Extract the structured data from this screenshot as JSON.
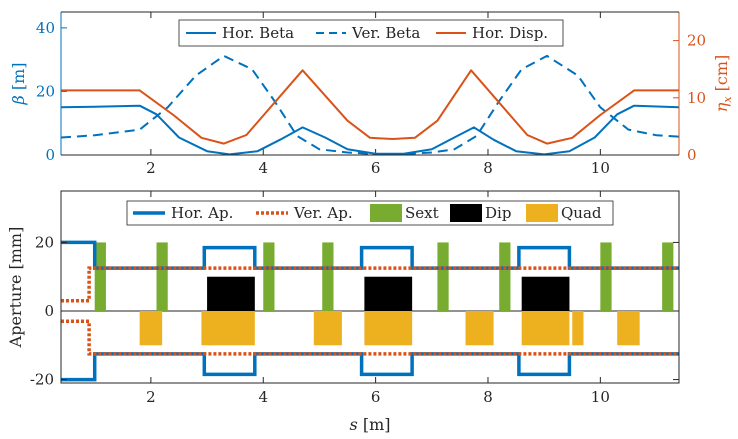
{
  "chart_data": [
    {
      "type": "line",
      "x_range": [
        0.4,
        11.4
      ],
      "x_ticks": [
        2,
        4,
        6,
        8,
        10
      ],
      "y_left": {
        "label": "β [m]",
        "range": [
          0,
          45
        ],
        "ticks": [
          0,
          20,
          40
        ],
        "color": "#0072BD"
      },
      "y_right": {
        "label": "ηx [cm]",
        "range": [
          0,
          25
        ],
        "ticks": [
          0,
          10,
          20
        ],
        "color": "#D95319"
      },
      "legend": {
        "placement": "top-center",
        "entries": [
          "Hor. Beta",
          "Ver. Beta",
          "Hor. Disp."
        ]
      },
      "series": [
        {
          "name": "Hor. Beta",
          "axis": "left",
          "style": "solid",
          "color": "#0072BD",
          "points": [
            [
              0.4,
              15
            ],
            [
              1.0,
              15.2
            ],
            [
              1.8,
              15.5
            ],
            [
              2.1,
              12.8
            ],
            [
              2.5,
              5.5
            ],
            [
              3.0,
              1.2
            ],
            [
              3.4,
              0.2
            ],
            [
              3.9,
              1.2
            ],
            [
              4.3,
              4.8
            ],
            [
              4.7,
              8.7
            ],
            [
              5.1,
              5.5
            ],
            [
              5.5,
              1.8
            ],
            [
              6.0,
              0.4
            ],
            [
              6.5,
              0.4
            ],
            [
              7.0,
              1.8
            ],
            [
              7.4,
              5.5
            ],
            [
              7.75,
              8.7
            ],
            [
              8.1,
              4.8
            ],
            [
              8.5,
              1.2
            ],
            [
              9.0,
              0.2
            ],
            [
              9.45,
              1.2
            ],
            [
              9.9,
              5.5
            ],
            [
              10.3,
              12.8
            ],
            [
              10.6,
              15.5
            ],
            [
              11.4,
              15
            ]
          ]
        },
        {
          "name": "Ver. Beta",
          "axis": "left",
          "style": "dashed",
          "color": "#0072BD",
          "points": [
            [
              0.4,
              5.5
            ],
            [
              1.0,
              6.2
            ],
            [
              1.8,
              8
            ],
            [
              2.3,
              15
            ],
            [
              2.8,
              25
            ],
            [
              3.3,
              31.2
            ],
            [
              3.8,
              27
            ],
            [
              4.2,
              17
            ],
            [
              4.6,
              6
            ],
            [
              5.0,
              1.8
            ],
            [
              5.5,
              0.8
            ],
            [
              6.0,
              0.3
            ],
            [
              6.5,
              0.3
            ],
            [
              7.0,
              0.8
            ],
            [
              7.4,
              1.8
            ],
            [
              7.8,
              6
            ],
            [
              8.2,
              17
            ],
            [
              8.6,
              27
            ],
            [
              9.05,
              31.2
            ],
            [
              9.6,
              25
            ],
            [
              10.0,
              15
            ],
            [
              10.5,
              8
            ],
            [
              11.0,
              6.2
            ],
            [
              11.4,
              5.8
            ]
          ]
        },
        {
          "name": "Hor. Disp.",
          "axis": "right",
          "style": "solid",
          "color": "#D95319",
          "points": [
            [
              0.4,
              11.3
            ],
            [
              1.8,
              11.3
            ],
            [
              2.4,
              7
            ],
            [
              2.9,
              3
            ],
            [
              3.3,
              2
            ],
            [
              3.7,
              3.5
            ],
            [
              4.7,
              14.8
            ],
            [
              5.5,
              6
            ],
            [
              5.9,
              3
            ],
            [
              6.3,
              2.8
            ],
            [
              6.7,
              3
            ],
            [
              7.1,
              6
            ],
            [
              7.7,
              14.8
            ],
            [
              8.7,
              3.5
            ],
            [
              9.05,
              2
            ],
            [
              9.5,
              3
            ],
            [
              10.0,
              7
            ],
            [
              10.6,
              11.3
            ],
            [
              11.4,
              11.3
            ]
          ]
        }
      ]
    },
    {
      "type": "line",
      "x_label": "s [m]",
      "x_range": [
        0.4,
        11.4
      ],
      "x_ticks": [
        2,
        4,
        6,
        8,
        10
      ],
      "y_label": "Aperture [mm]",
      "y_range": [
        -21,
        35
      ],
      "y_ticks": [
        -20,
        0,
        20
      ],
      "legend": {
        "placement": "top-center",
        "entries": [
          "Hor. Ap.",
          "Ver. Ap.",
          "Sext",
          "Dip",
          "Quad"
        ]
      },
      "colors": {
        "hor_ap": "#0072BD",
        "ver_ap": "#D95319",
        "sext": "#77AC30",
        "dip": "#000000",
        "quad": "#EDB120"
      },
      "hor_ap_outline": [
        [
          0.4,
          20
        ],
        [
          1.0,
          20
        ],
        [
          1.0,
          12.5
        ],
        [
          2.95,
          12.5
        ],
        [
          2.95,
          18.5
        ],
        [
          3.85,
          18.5
        ],
        [
          3.85,
          12.5
        ],
        [
          5.75,
          12.5
        ],
        [
          5.75,
          18.5
        ],
        [
          6.65,
          18.5
        ],
        [
          6.65,
          12.5
        ],
        [
          8.55,
          12.5
        ],
        [
          8.55,
          18.5
        ],
        [
          9.45,
          18.5
        ],
        [
          9.45,
          12.5
        ],
        [
          11.4,
          12.5
        ]
      ],
      "ver_ap_outline": [
        [
          0.4,
          3
        ],
        [
          0.9,
          3
        ],
        [
          0.9,
          12.5
        ],
        [
          11.4,
          12.5
        ]
      ],
      "sext": [
        [
          1.0,
          1.2
        ],
        [
          2.1,
          2.3
        ],
        [
          4.0,
          4.2
        ],
        [
          5.05,
          5.25
        ],
        [
          7.1,
          7.3
        ],
        [
          8.2,
          8.4
        ],
        [
          10.0,
          10.2
        ],
        [
          11.1,
          11.3
        ]
      ],
      "sext_y": [
        0,
        20
      ],
      "dip": [
        [
          3.0,
          3.85
        ],
        [
          5.8,
          6.65
        ],
        [
          8.6,
          9.45
        ]
      ],
      "dip_y": [
        0,
        10
      ],
      "quad": [
        [
          1.8,
          2.2
        ],
        [
          2.9,
          3.1
        ],
        [
          3.0,
          3.85
        ],
        [
          4.9,
          5.4
        ],
        [
          5.8,
          6.65
        ],
        [
          7.6,
          8.1
        ],
        [
          8.6,
          9.45
        ],
        [
          9.5,
          9.7
        ],
        [
          10.3,
          10.7
        ]
      ],
      "quad_y": [
        -10,
        0
      ]
    }
  ]
}
